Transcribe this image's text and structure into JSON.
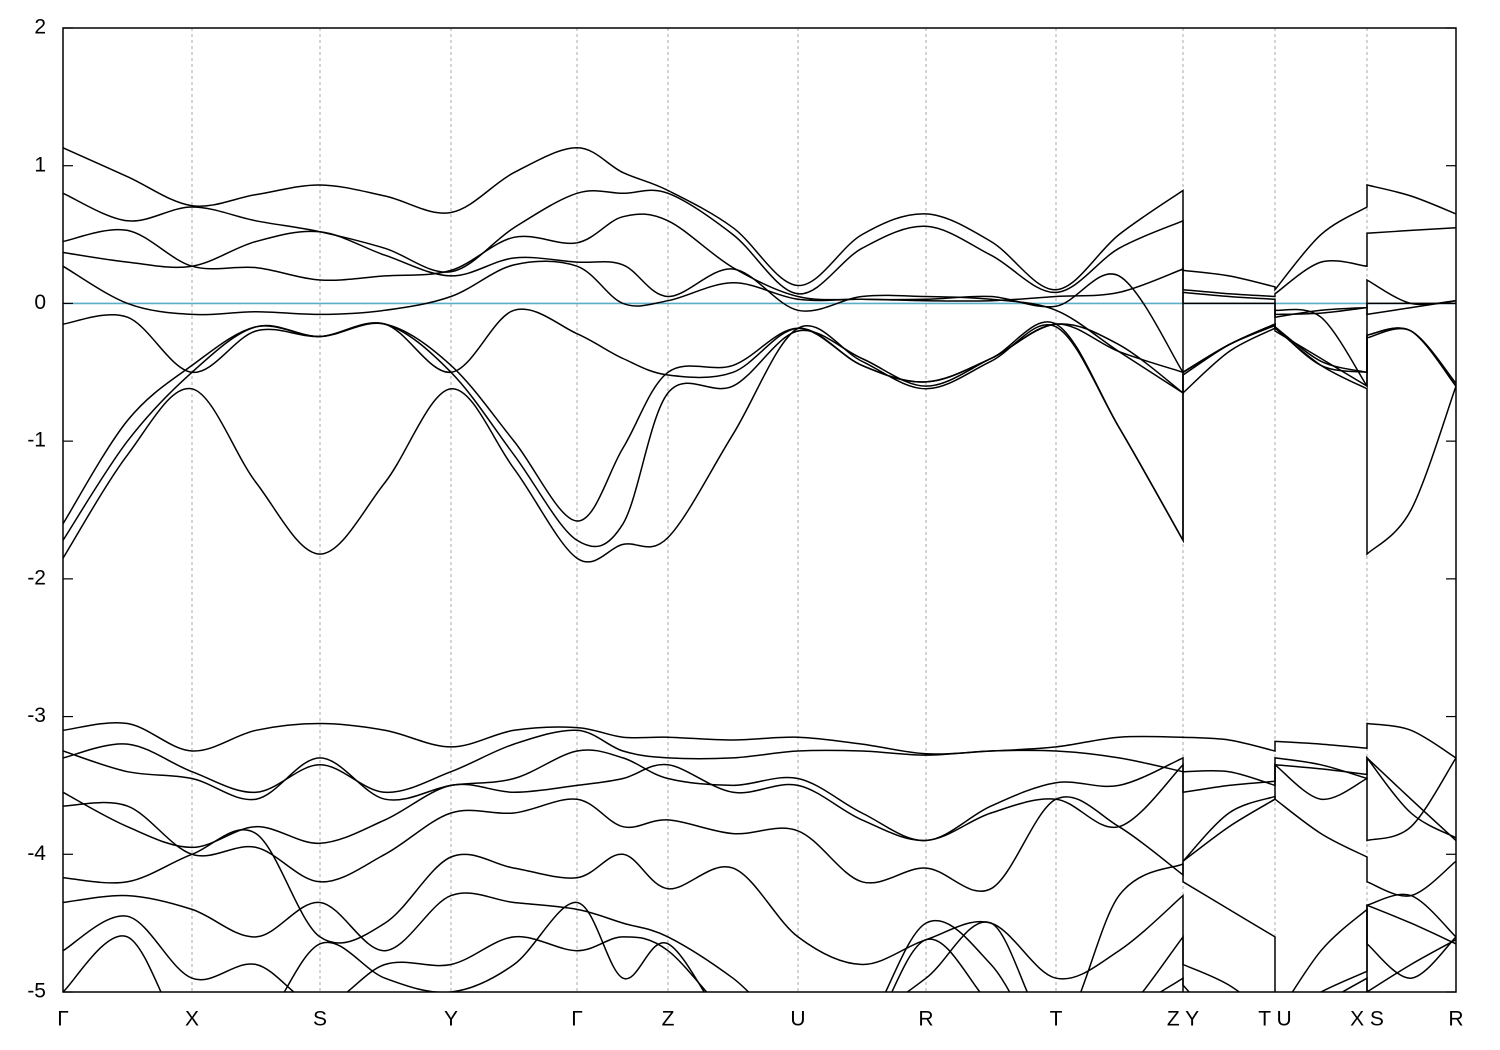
{
  "chart_data": {
    "type": "line",
    "line_color": "#000000",
    "fermi_level": 0,
    "fermi_color": "#5aaec8",
    "grid": true,
    "xlim": [
      0,
      13.93
    ],
    "ylim": [
      -5,
      2
    ],
    "yticks": [
      -5,
      -4,
      -3,
      -2,
      -1,
      0,
      1,
      2
    ],
    "xticks": [
      {
        "value": 0,
        "label": "Γ"
      },
      {
        "value": 1.29,
        "label": "X"
      },
      {
        "value": 2.57,
        "label": "S"
      },
      {
        "value": 3.88,
        "label": "Y"
      },
      {
        "value": 5.14,
        "label": "Γ"
      },
      {
        "value": 6.05,
        "label": "Z"
      },
      {
        "value": 7.35,
        "label": "U"
      },
      {
        "value": 8.63,
        "label": "R"
      },
      {
        "value": 9.93,
        "label": "T"
      },
      {
        "value": 11.2,
        "label": "Z Y"
      },
      {
        "value": 12.12,
        "label": "T U"
      },
      {
        "value": 13.04,
        "label": "X S"
      },
      {
        "value": 13.93,
        "label": "R"
      }
    ],
    "x": [
      0,
      0.645,
      1.29,
      1.93,
      2.57,
      3.22,
      3.88,
      4.51,
      5.14,
      5.6,
      6.05,
      6.7,
      7.35,
      7.99,
      8.63,
      9.28,
      9.93,
      10.56,
      11.2,
      11.2,
      11.66,
      12.12,
      12.12,
      12.58,
      13.04,
      13.04,
      13.48,
      13.93
    ],
    "series": [
      {
        "values": [
          1.13,
          0.92,
          0.71,
          0.79,
          0.86,
          0.78,
          0.66,
          0.95,
          1.13,
          0.95,
          0.82,
          0.55,
          0.13,
          0.5,
          0.65,
          0.45,
          0.1,
          0.5,
          0.82,
          0.24,
          0.2,
          0.12,
          0.1,
          0.5,
          0.7,
          0.86,
          0.78,
          0.65
        ]
      },
      {
        "values": [
          0.8,
          0.6,
          0.7,
          0.6,
          0.52,
          0.4,
          0.23,
          0.55,
          0.8,
          0.8,
          0.8,
          0.5,
          0.07,
          0.4,
          0.56,
          0.35,
          0.08,
          0.4,
          0.6,
          0.1,
          0.07,
          0.05,
          0.07,
          0.3,
          0.27,
          0.51,
          0.53,
          0.55
        ]
      },
      {
        "values": [
          0.45,
          0.53,
          0.27,
          0.26,
          0.17,
          0.2,
          0.24,
          0.48,
          0.44,
          0.63,
          0.6,
          0.26,
          0.05,
          0.03,
          0.03,
          0.05,
          -0.02,
          0.2,
          -0.5,
          -0.5,
          -0.3,
          -0.15,
          -0.17,
          -0.45,
          -0.5,
          0.17,
          0.0,
          0.02
        ]
      },
      {
        "values": [
          0.37,
          0.3,
          0.27,
          0.45,
          0.52,
          0.35,
          0.2,
          0.33,
          0.3,
          0.28,
          0.05,
          0.25,
          -0.05,
          0.05,
          0.05,
          0.03,
          -0.05,
          -0.35,
          -0.65,
          -0.65,
          -0.35,
          -0.18,
          -0.05,
          -0.1,
          -0.6,
          -0.23,
          -0.2,
          -0.6
        ]
      },
      {
        "values": [
          0.27,
          0.0,
          -0.08,
          -0.06,
          -0.08,
          -0.05,
          0.05,
          0.28,
          0.27,
          0.0,
          0.02,
          0.15,
          0.03,
          0.03,
          0.02,
          0.02,
          0.05,
          0.08,
          0.25,
          0.0,
          0.0,
          0.0,
          -0.1,
          -0.05,
          -0.03,
          0.0,
          0.0,
          0.0
        ]
      },
      {
        "values": [
          -0.15,
          -0.1,
          -0.5,
          -0.2,
          -0.24,
          -0.15,
          -0.5,
          -0.05,
          -0.22,
          -0.4,
          -0.52,
          -0.5,
          -0.18,
          -0.45,
          -0.57,
          -0.4,
          -0.15,
          -0.9,
          -1.72,
          0.08,
          0.05,
          0.03,
          -0.08,
          -0.07,
          -0.03,
          -0.08,
          -0.03,
          0.02
        ]
      },
      {
        "values": [
          -1.6,
          -0.85,
          -0.45,
          -0.17,
          -0.24,
          -0.15,
          -0.45,
          -1.0,
          -1.58,
          -1.05,
          -0.5,
          -0.45,
          -0.18,
          -0.45,
          -0.57,
          -0.4,
          -0.15,
          -0.35,
          -0.5,
          -0.5,
          -0.3,
          -0.15,
          -0.17,
          -0.42,
          -0.5,
          -0.23,
          -0.2,
          -0.6
        ]
      },
      {
        "values": [
          -1.85,
          -1.1,
          -0.62,
          -1.3,
          -1.82,
          -1.3,
          -0.62,
          -1.2,
          -1.85,
          -1.75,
          -1.7,
          -0.95,
          -0.18,
          -0.42,
          -0.62,
          -0.42,
          -0.17,
          -0.9,
          -1.72,
          -0.52,
          -0.3,
          -0.15,
          -0.18,
          -0.45,
          -0.62,
          -1.82,
          -1.5,
          -0.6
        ]
      },
      {
        "values": [
          -1.72,
          -1.0,
          -0.5,
          -0.17,
          -0.24,
          -0.15,
          -0.5,
          -1.1,
          -1.72,
          -1.6,
          -0.65,
          -0.6,
          -0.2,
          -0.4,
          -0.6,
          -0.4,
          -0.15,
          -0.3,
          -0.65,
          -0.5,
          -0.3,
          -0.16,
          -0.2,
          -0.4,
          -0.6,
          -0.25,
          -0.2,
          -0.58
        ]
      },
      {
        "values": [
          -3.1,
          -3.05,
          -3.25,
          -3.1,
          -3.05,
          -3.1,
          -3.22,
          -3.1,
          -3.08,
          -3.15,
          -3.15,
          -3.17,
          -3.15,
          -3.2,
          -3.27,
          -3.25,
          -3.22,
          -3.15,
          -3.15,
          -3.15,
          -3.17,
          -3.25,
          -3.18,
          -3.2,
          -3.23,
          -3.05,
          -3.1,
          -3.3
        ]
      },
      {
        "values": [
          -3.3,
          -3.2,
          -3.4,
          -3.55,
          -3.35,
          -3.55,
          -3.4,
          -3.2,
          -3.1,
          -3.25,
          -3.3,
          -3.3,
          -3.25,
          -3.25,
          -3.28,
          -3.25,
          -3.25,
          -3.3,
          -3.4,
          -3.4,
          -3.4,
          -3.5,
          -3.35,
          -3.38,
          -3.42,
          -3.3,
          -3.6,
          -3.9
        ]
      },
      {
        "values": [
          -3.25,
          -3.4,
          -3.45,
          -3.6,
          -3.3,
          -3.6,
          -3.5,
          -3.45,
          -3.25,
          -3.3,
          -3.45,
          -3.5,
          -3.45,
          -3.7,
          -3.9,
          -3.65,
          -3.48,
          -3.5,
          -3.3,
          -3.55,
          -3.5,
          -3.47,
          -3.3,
          -3.35,
          -3.45,
          -3.3,
          -3.7,
          -3.88
        ]
      },
      {
        "values": [
          -3.55,
          -3.8,
          -3.95,
          -3.8,
          -3.92,
          -3.75,
          -3.5,
          -3.55,
          -3.5,
          -3.45,
          -3.35,
          -3.55,
          -3.5,
          -3.75,
          -3.9,
          -3.7,
          -3.6,
          -3.8,
          -3.35,
          -4.05,
          -3.8,
          -3.6,
          -3.35,
          -3.6,
          -3.45,
          -3.9,
          -3.8,
          -3.3
        ]
      },
      {
        "values": [
          -3.65,
          -3.65,
          -4.0,
          -3.95,
          -4.2,
          -4.0,
          -3.7,
          -3.7,
          -3.6,
          -3.8,
          -3.75,
          -3.85,
          -3.83,
          -4.2,
          -4.1,
          -4.25,
          -3.6,
          -3.8,
          -4.15,
          -4.05,
          -3.7,
          -3.58,
          -3.6,
          -3.85,
          -4.02,
          -4.2,
          -4.3,
          -4.05
        ]
      },
      {
        "values": [
          -4.17,
          -4.2,
          -4.0,
          -3.85,
          -4.6,
          -4.5,
          -4.02,
          -4.1,
          -4.17,
          -4.0,
          -4.25,
          -4.1,
          -4.6,
          -4.8,
          -4.62,
          -4.5,
          -4.9,
          -4.7,
          -4.3,
          -4.8,
          -4.95,
          -5.2,
          -5.2,
          -5.0,
          -4.85,
          -4.37,
          -4.3,
          -4.6
        ]
      },
      {
        "values": [
          -4.35,
          -4.3,
          -4.4,
          -4.6,
          -4.35,
          -4.7,
          -4.3,
          -4.35,
          -4.4,
          -4.5,
          -4.6,
          -4.9,
          -5.3,
          -5.2,
          -4.9,
          -4.5,
          -5.3,
          -4.3,
          -4.07,
          -4.2,
          -4.4,
          -4.6,
          -5.2,
          -4.7,
          -4.4,
          -4.65,
          -4.9,
          -4.6
        ]
      },
      {
        "values": [
          -4.7,
          -4.45,
          -4.9,
          -4.8,
          -5.1,
          -4.8,
          -4.8,
          -4.6,
          -4.7,
          -4.6,
          -4.7,
          -5.2,
          -5.5,
          -5.3,
          -4.5,
          -4.8,
          -5.5,
          -5.2,
          -4.6,
          -4.95,
          -5.3,
          -5.4,
          -5.3,
          -5.2,
          -5.0,
          -4.37,
          -4.5,
          -4.65
        ]
      },
      {
        "values": [
          -5.0,
          -4.6,
          -5.4,
          -5.3,
          -4.65,
          -4.9,
          -5.0,
          -4.8,
          -4.35,
          -4.9,
          -4.65,
          -5.3,
          -5.6,
          -5.4,
          -4.62,
          -5.1,
          -5.6,
          -5.2,
          -4.9,
          -5.2,
          -5.4,
          -5.5,
          -5.4,
          -5.1,
          -4.9,
          -5.0,
          -4.8,
          -4.62
        ]
      }
    ]
  }
}
